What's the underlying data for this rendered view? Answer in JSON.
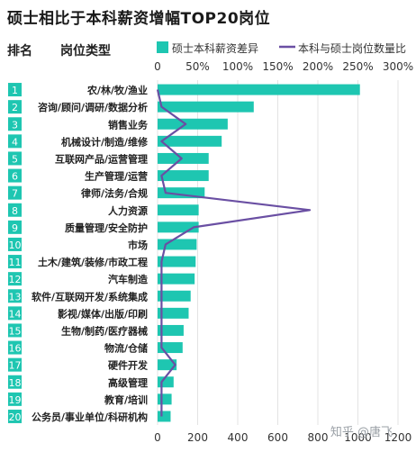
{
  "title": "硕士相比于本科薪资增幅TOP20岗位",
  "headers": {
    "rank": "排名",
    "job": "岗位类型"
  },
  "legend": {
    "bar": "硕士本科薪资差异",
    "line": "本科与硕士岗位数量比"
  },
  "watermark": "知乎 @唐飞",
  "colors": {
    "bar": "#1ec6b1",
    "line": "#6a4fa3",
    "rankbox": "#1ec6b1",
    "grid": "#e3e3e3"
  },
  "chart_data": {
    "type": "bar",
    "orientation": "horizontal",
    "title": "硕士相比于本科薪资增幅TOP20岗位",
    "ranks": [
      "1",
      "2",
      "3",
      "4",
      "5",
      "6",
      "7",
      "8",
      "9",
      "10",
      "11",
      "12",
      "13",
      "14",
      "15",
      "16",
      "17",
      "18",
      "19",
      "20"
    ],
    "categories": [
      "农/林/牧/渔业",
      "咨询/顾问/调研/数据分析",
      "销售业务",
      "机械设计/制造/维修",
      "互联网产品/运营管理",
      "生产管理/运营",
      "律师/法务/合规",
      "人力资源",
      "质量管理/安全防护",
      "市场",
      "土木/建筑/装修/市政工程",
      "汽车制造",
      "软件/互联网开发/系统集成",
      "影视/媒体/出版/印刷",
      "生物/制药/医疗器械",
      "物流/仓储",
      "硬件开发",
      "高级管理",
      "教育/培训",
      "公务员/事业单位/科研机构"
    ],
    "bottom_axis": {
      "ticks": [
        "0",
        "200",
        "400",
        "600",
        "800",
        "1000",
        "1200"
      ],
      "range": [
        0,
        1200
      ]
    },
    "top_axis": {
      "ticks": [
        "0",
        "50%",
        "100%",
        "150%",
        "200%",
        "250%",
        "300%"
      ],
      "range": [
        0,
        300
      ]
    },
    "series": [
      {
        "name": "硕士本科薪资差异",
        "type": "bar",
        "axis": "bottom",
        "values": [
          1010,
          480,
          350,
          320,
          255,
          255,
          235,
          205,
          205,
          195,
          190,
          185,
          165,
          155,
          130,
          125,
          95,
          80,
          70,
          65
        ]
      },
      {
        "name": "本科与硕士岗位数量比",
        "type": "line",
        "axis": "top",
        "values": [
          0,
          5,
          35,
          5,
          30,
          5,
          10,
          190,
          45,
          10,
          5,
          5,
          5,
          5,
          5,
          5,
          22,
          5,
          5,
          5
        ]
      }
    ]
  }
}
